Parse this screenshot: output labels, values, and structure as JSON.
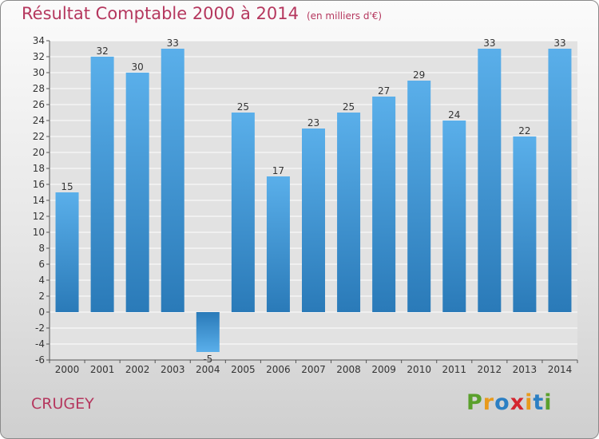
{
  "header": {
    "title": "Résultat Comptable 2000 à 2014",
    "unit": "(en milliers d'€)"
  },
  "footer": {
    "place": "CRUGEY",
    "logo": "Proxiti",
    "logo_colors": [
      "#5aa02c",
      "#e89a1c",
      "#2b7fc3",
      "#d4252f",
      "#e89a1c",
      "#2b7fc3",
      "#5aa02c"
    ]
  },
  "colors": {
    "title": "#b5375e",
    "bar_light": "#5aafea",
    "bar_dark": "#2a7ab8",
    "grid": "#ffffff"
  },
  "chart_data": {
    "type": "bar",
    "title": "Résultat Comptable 2000 à 2014",
    "ylabel": "(en milliers d'€)",
    "categories": [
      "2000",
      "2001",
      "2002",
      "2003",
      "2004",
      "2005",
      "2006",
      "2007",
      "2008",
      "2009",
      "2010",
      "2011",
      "2012",
      "2013",
      "2014"
    ],
    "values": [
      15,
      32,
      30,
      33,
      -5,
      25,
      17,
      23,
      25,
      27,
      29,
      24,
      33,
      22,
      33
    ],
    "ylim": [
      -6,
      34
    ],
    "ytick_step": 2,
    "grid": true
  }
}
